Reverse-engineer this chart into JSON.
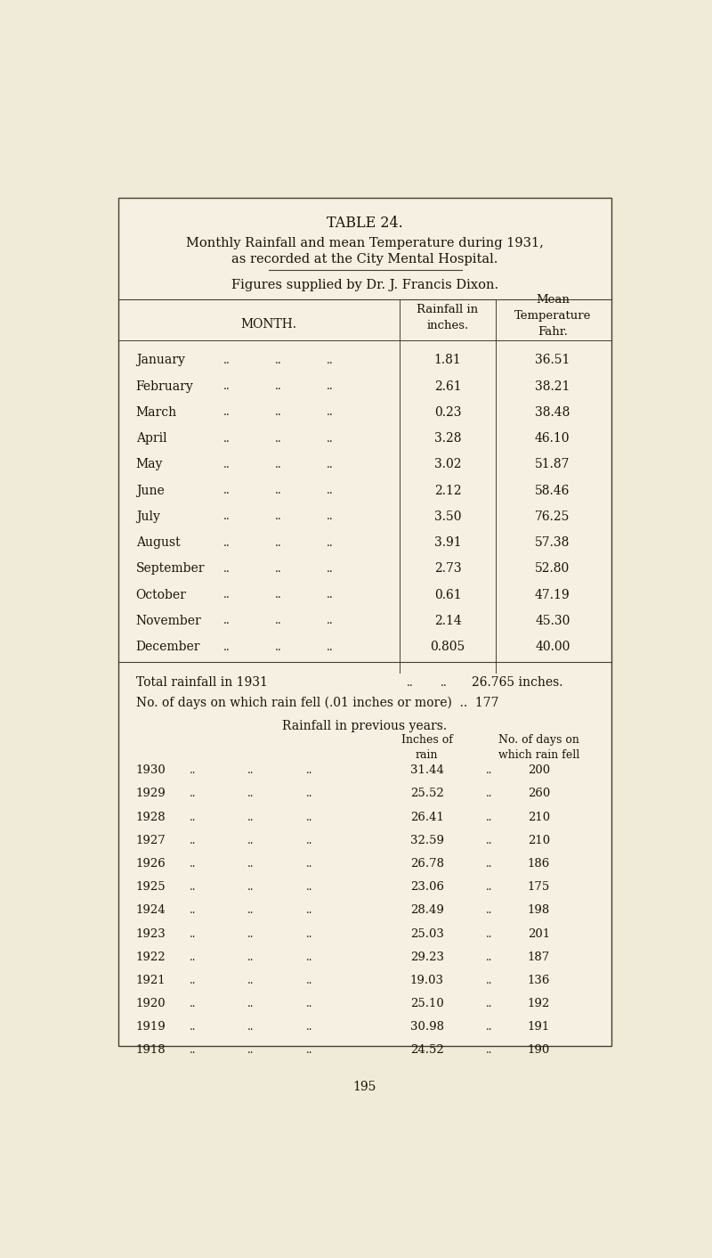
{
  "title1": "TABLE 24.",
  "title2": "Monthly Rainfall and mean Temperature during 1931,",
  "title3": "as recorded at the City Mental Hospital.",
  "title4": "Figures supplied by Dr. J. Francis Dixon.",
  "col_headers": [
    "MONTH.",
    "Rainfall in\ninches.",
    "Mean\nTemperature\nFahr."
  ],
  "months": [
    "January",
    "February",
    "March",
    "April",
    "May",
    "June",
    "July",
    "August",
    "September",
    "October",
    "November",
    "December"
  ],
  "rainfall": [
    "1.81",
    "2.61",
    "0.23",
    "3.28",
    "3.02",
    "2.12",
    "3.50",
    "3.91",
    "2.73",
    "0.61",
    "2.14",
    "0.805"
  ],
  "temperature": [
    "36.51",
    "38.21",
    "38.48",
    "46.10",
    "51.87",
    "58.46",
    "76.25",
    "57.38",
    "52.80",
    "47.19",
    "45.30",
    "40.00"
  ],
  "total_line1": "Total rainfall in 1931",
  "total_dots": "..",
  "total_dots2": "..",
  "total_line1_val": "26.765 inches.",
  "total_line2": "No. of days on which rain fell (.01 inches or more)  ..  177",
  "prev_title": "Rainfall in previous years.",
  "prev_col1": "Inches of\nrain",
  "prev_col2": "No. of days on\nwhich rain fell",
  "prev_years": [
    "1930",
    "1929",
    "1928",
    "1927",
    "1926",
    "1925",
    "1924",
    "1923",
    "1922",
    "1921",
    "1920",
    "1919",
    "1918"
  ],
  "prev_rainfall": [
    "31.44",
    "25.52",
    "26.41",
    "32.59",
    "26.78",
    "23.06",
    "28.49",
    "25.03",
    "29.23",
    "19.03",
    "25.10",
    "30.98",
    "24.52"
  ],
  "prev_days": [
    "200",
    "260",
    "210",
    "210",
    "186",
    "175",
    "198",
    "201",
    "187",
    "136",
    "192",
    "191",
    "190"
  ],
  "page_num": "195",
  "bg_color": "#f0ead8",
  "box_bg": "#f5f0e2",
  "text_color": "#1a1408",
  "line_color": "#444030"
}
